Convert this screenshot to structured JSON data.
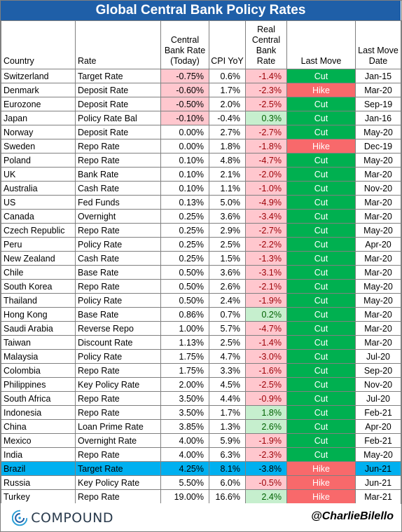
{
  "title": "Global Central Bank Policy Rates",
  "headers": {
    "country": "Country",
    "rate": "Rate",
    "policy_rate": "Central Bank Rate (Today)",
    "cpi": "CPI YoY",
    "real_rate": "Real Central Bank Rate",
    "last_move": "Last Move",
    "last_move_date": "Last Move Date"
  },
  "colors": {
    "title_bg": "#1f5fa8",
    "cut": "#00b050",
    "hike": "#f8696b",
    "negative_fill": "#ffc7ce",
    "positive_fill": "#c6efce",
    "highlight_row": "#00b0f0"
  },
  "rows": [
    {
      "country": "Switzerland",
      "rate": "Target Rate",
      "policy": "-0.75%",
      "cpi": "0.6%",
      "real": "-1.4%",
      "move": "Cut",
      "date": "Jan-15"
    },
    {
      "country": "Denmark",
      "rate": "Deposit Rate",
      "policy": "-0.60%",
      "cpi": "1.7%",
      "real": "-2.3%",
      "move": "Hike",
      "date": "Mar-20"
    },
    {
      "country": "Eurozone",
      "rate": "Deposit Rate",
      "policy": "-0.50%",
      "cpi": "2.0%",
      "real": "-2.5%",
      "move": "Cut",
      "date": "Sep-19"
    },
    {
      "country": "Japan",
      "rate": "Policy Rate Bal",
      "policy": "-0.10%",
      "cpi": "-0.4%",
      "real": "0.3%",
      "move": "Cut",
      "date": "Jan-16"
    },
    {
      "country": "Norway",
      "rate": "Deposit Rate",
      "policy": "0.00%",
      "cpi": "2.7%",
      "real": "-2.7%",
      "move": "Cut",
      "date": "May-20"
    },
    {
      "country": "Sweden",
      "rate": "Repo Rate",
      "policy": "0.00%",
      "cpi": "1.8%",
      "real": "-1.8%",
      "move": "Hike",
      "date": "Dec-19"
    },
    {
      "country": "Poland",
      "rate": "Repo Rate",
      "policy": "0.10%",
      "cpi": "4.8%",
      "real": "-4.7%",
      "move": "Cut",
      "date": "May-20"
    },
    {
      "country": "UK",
      "rate": "Bank Rate",
      "policy": "0.10%",
      "cpi": "2.1%",
      "real": "-2.0%",
      "move": "Cut",
      "date": "Mar-20"
    },
    {
      "country": "Australia",
      "rate": "Cash Rate",
      "policy": "0.10%",
      "cpi": "1.1%",
      "real": "-1.0%",
      "move": "Cut",
      "date": "Nov-20"
    },
    {
      "country": "US",
      "rate": "Fed Funds",
      "policy": "0.13%",
      "cpi": "5.0%",
      "real": "-4.9%",
      "move": "Cut",
      "date": "Mar-20"
    },
    {
      "country": "Canada",
      "rate": "Overnight",
      "policy": "0.25%",
      "cpi": "3.6%",
      "real": "-3.4%",
      "move": "Cut",
      "date": "Mar-20"
    },
    {
      "country": "Czech Republic",
      "rate": "Repo Rate",
      "policy": "0.25%",
      "cpi": "2.9%",
      "real": "-2.7%",
      "move": "Cut",
      "date": "May-20"
    },
    {
      "country": "Peru",
      "rate": "Policy Rate",
      "policy": "0.25%",
      "cpi": "2.5%",
      "real": "-2.2%",
      "move": "Cut",
      "date": "Apr-20"
    },
    {
      "country": "New Zealand",
      "rate": "Cash Rate",
      "policy": "0.25%",
      "cpi": "1.5%",
      "real": "-1.3%",
      "move": "Cut",
      "date": "Mar-20"
    },
    {
      "country": "Chile",
      "rate": "Base Rate",
      "policy": "0.50%",
      "cpi": "3.6%",
      "real": "-3.1%",
      "move": "Cut",
      "date": "Mar-20"
    },
    {
      "country": "South Korea",
      "rate": "Repo Rate",
      "policy": "0.50%",
      "cpi": "2.6%",
      "real": "-2.1%",
      "move": "Cut",
      "date": "May-20"
    },
    {
      "country": "Thailand",
      "rate": "Policy Rate",
      "policy": "0.50%",
      "cpi": "2.4%",
      "real": "-1.9%",
      "move": "Cut",
      "date": "May-20"
    },
    {
      "country": "Hong Kong",
      "rate": "Base Rate",
      "policy": "0.86%",
      "cpi": "0.7%",
      "real": "0.2%",
      "move": "Cut",
      "date": "Mar-20"
    },
    {
      "country": "Saudi Arabia",
      "rate": "Reverse Repo",
      "policy": "1.00%",
      "cpi": "5.7%",
      "real": "-4.7%",
      "move": "Cut",
      "date": "Mar-20"
    },
    {
      "country": "Taiwan",
      "rate": "Discount Rate",
      "policy": "1.13%",
      "cpi": "2.5%",
      "real": "-1.4%",
      "move": "Cut",
      "date": "Mar-20"
    },
    {
      "country": "Malaysia",
      "rate": "Policy Rate",
      "policy": "1.75%",
      "cpi": "4.7%",
      "real": "-3.0%",
      "move": "Cut",
      "date": "Jul-20"
    },
    {
      "country": "Colombia",
      "rate": "Repo Rate",
      "policy": "1.75%",
      "cpi": "3.3%",
      "real": "-1.6%",
      "move": "Cut",
      "date": "Sep-20"
    },
    {
      "country": "Philippines",
      "rate": "Key Policy Rate",
      "policy": "2.00%",
      "cpi": "4.5%",
      "real": "-2.5%",
      "move": "Cut",
      "date": "Nov-20"
    },
    {
      "country": "South Africa",
      "rate": "Repo Rate",
      "policy": "3.50%",
      "cpi": "4.4%",
      "real": "-0.9%",
      "move": "Cut",
      "date": "Jul-20"
    },
    {
      "country": "Indonesia",
      "rate": "Repo Rate",
      "policy": "3.50%",
      "cpi": "1.7%",
      "real": "1.8%",
      "move": "Cut",
      "date": "Feb-21"
    },
    {
      "country": "China",
      "rate": "Loan Prime Rate",
      "policy": "3.85%",
      "cpi": "1.3%",
      "real": "2.6%",
      "move": "Cut",
      "date": "Apr-20"
    },
    {
      "country": "Mexico",
      "rate": "Overnight Rate",
      "policy": "4.00%",
      "cpi": "5.9%",
      "real": "-1.9%",
      "move": "Cut",
      "date": "Feb-21"
    },
    {
      "country": "India",
      "rate": "Repo Rate",
      "policy": "4.00%",
      "cpi": "6.3%",
      "real": "-2.3%",
      "move": "Cut",
      "date": "May-20"
    },
    {
      "country": "Brazil",
      "rate": "Target Rate",
      "policy": "4.25%",
      "cpi": "8.1%",
      "real": "-3.8%",
      "move": "Hike",
      "date": "Jun-21"
    },
    {
      "country": "Russia",
      "rate": "Key Policy Rate",
      "policy": "5.50%",
      "cpi": "6.0%",
      "real": "-0.5%",
      "move": "Hike",
      "date": "Jun-21"
    },
    {
      "country": "Turkey",
      "rate": "Repo Rate",
      "policy": "19.00%",
      "cpi": "16.6%",
      "real": "2.4%",
      "move": "Hike",
      "date": "Mar-21"
    }
  ],
  "highlighted_country": "Brazil",
  "footer": {
    "logo_text": "COMPOUND",
    "logo_icon": "compound-logo-icon",
    "handle": "@CharlieBilello"
  }
}
